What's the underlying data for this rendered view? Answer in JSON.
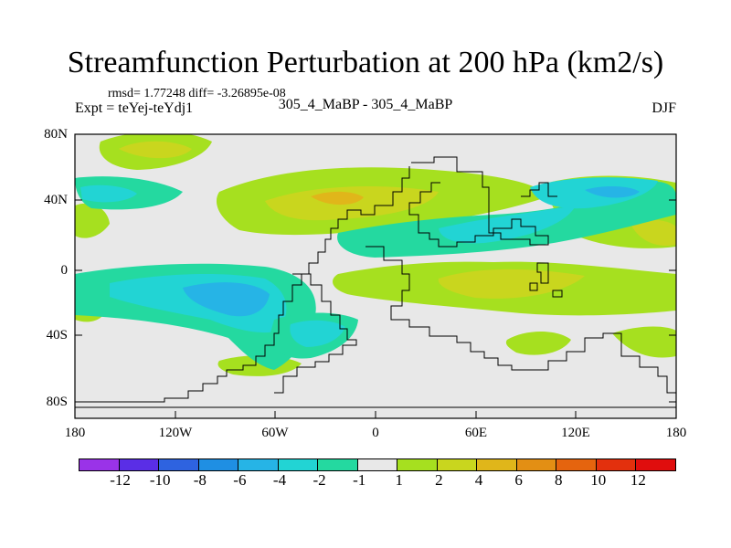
{
  "figure": {
    "title": "Streamfunction Perturbation at 200 hPa (km2/s)",
    "stats": "rmsd= 1.77248 diff= -3.26895e-08",
    "experiment": "Expt = teYej-teYdj1",
    "case": "305_4_MaBP - 305_4_MaBP",
    "season": "DJF"
  },
  "axes": {
    "y_ticks": [
      "80N",
      "40N",
      "0",
      "40S",
      "80S"
    ],
    "x_ticks": [
      "180",
      "120W",
      "60W",
      "0",
      "60E",
      "120E",
      "180"
    ]
  },
  "colorbar": {
    "labels": [
      "-12",
      "-10",
      "-8",
      "-6",
      "-4",
      "-2",
      "-1",
      "1",
      "2",
      "4",
      "6",
      "8",
      "10",
      "12"
    ],
    "colors": [
      "#9a33e8",
      "#5a2ee6",
      "#2e63e0",
      "#1f8fe3",
      "#26b4e6",
      "#22d4d4",
      "#24d9a0",
      "#e8e8e8",
      "#a6e01f",
      "#c9d61e",
      "#e0b61a",
      "#e38f14",
      "#e5640e",
      "#e3300d",
      "#e00d0d"
    ]
  }
}
